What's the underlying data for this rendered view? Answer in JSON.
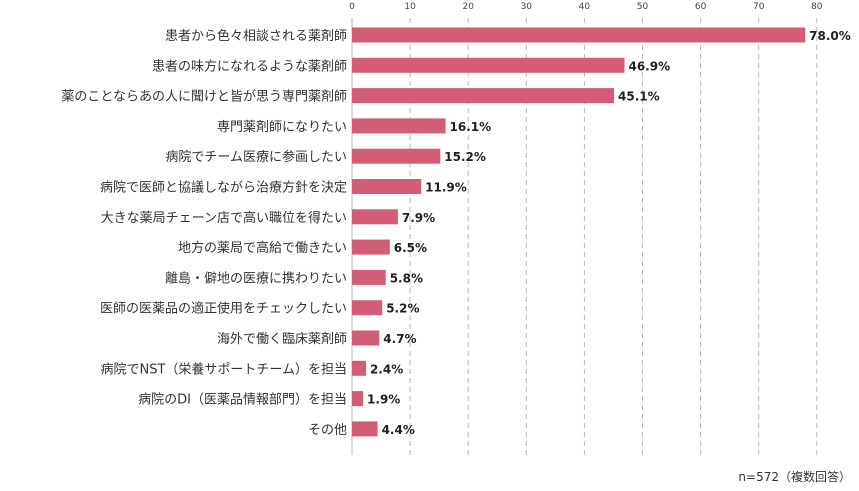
{
  "chart_data": {
    "type": "bar",
    "orientation": "horizontal",
    "title": "",
    "xlabel": "",
    "ylabel": "",
    "xlim": [
      0,
      80
    ],
    "ticks": [
      0,
      10,
      20,
      30,
      40,
      50,
      60,
      70,
      80
    ],
    "grid": true,
    "bar_color": "#d35d76",
    "categories": [
      "患者から色々相談される薬剤師",
      "患者の味方になれるような薬剤師",
      "薬のことならあの人に聞けと皆が思う専門薬剤師",
      "専門薬剤師になりたい",
      "病院でチーム医療に参画したい",
      "病院で医師と協議しながら治療方針を決定",
      "大きな薬局チェーン店で高い職位を得たい",
      "地方の薬局で高給で働きたい",
      "離島・僻地の医療に携わりたい",
      "医師の医薬品の適正使用をチェックしたい",
      "海外で働く臨床薬剤師",
      "病院でNST（栄養サポートチーム）を担当",
      "病院のDI（医薬品情報部門）を担当",
      "その他"
    ],
    "values": [
      78.0,
      46.9,
      45.1,
      16.1,
      15.2,
      11.9,
      7.9,
      6.5,
      5.8,
      5.2,
      4.7,
      2.4,
      1.9,
      4.4
    ],
    "value_labels": [
      "78.0%",
      "46.9%",
      "45.1%",
      "16.1%",
      "15.2%",
      "11.9%",
      "7.9%",
      "6.5%",
      "5.8%",
      "5.2%",
      "4.7%",
      "2.4%",
      "1.9%",
      "4.4%"
    ]
  },
  "note": "n=572（複数回答）"
}
